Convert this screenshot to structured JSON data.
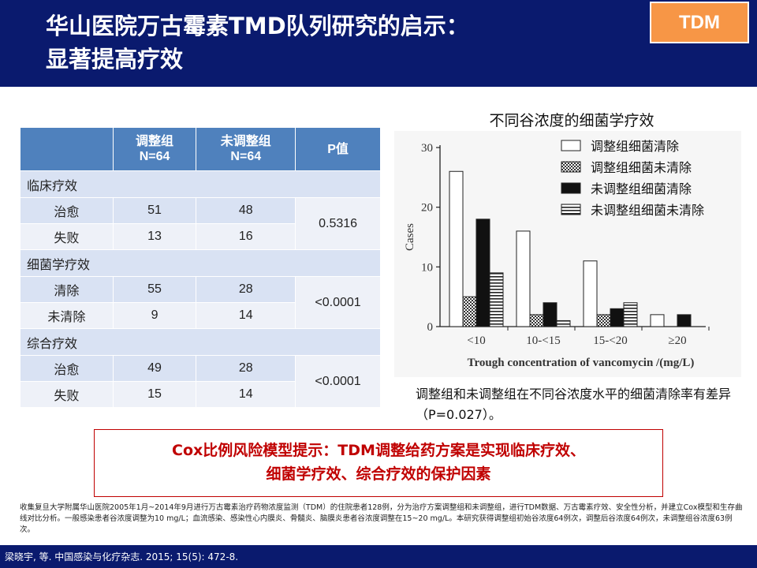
{
  "header": {
    "title_line1": "华山医院万古霉素TMD队列研究的启示：",
    "title_line2": "显著提高疗效",
    "badge": "TDM"
  },
  "table": {
    "headers": [
      {
        "line1": "调整组",
        "line2": "N=64"
      },
      {
        "line1": "未调整组",
        "line2": "N=64"
      },
      {
        "line1": "P值",
        "line2": ""
      }
    ],
    "groups": [
      {
        "name": "临床疗效",
        "rows": [
          {
            "label": "治愈",
            "adjusted": "51",
            "unadjusted": "48"
          },
          {
            "label": "失败",
            "adjusted": "13",
            "unadjusted": "16"
          }
        ],
        "p": "0.5316"
      },
      {
        "name": "细菌学疗效",
        "rows": [
          {
            "label": "清除",
            "adjusted": "55",
            "unadjusted": "28"
          },
          {
            "label": "未清除",
            "adjusted": "9",
            "unadjusted": "14"
          }
        ],
        "p": "<0.0001"
      },
      {
        "name": "综合疗效",
        "rows": [
          {
            "label": "治愈",
            "adjusted": "49",
            "unadjusted": "28"
          },
          {
            "label": "失败",
            "adjusted": "15",
            "unadjusted": "14"
          }
        ],
        "p": "<0.0001"
      }
    ]
  },
  "chart_data": {
    "type": "bar",
    "title": "不同谷浓度的细菌学疗效",
    "xlabel": "Trough concentration of vancomycin /(mg/L)",
    "ylabel": "Cases",
    "ylim": [
      0,
      30
    ],
    "yticks": [
      0,
      10,
      20,
      30
    ],
    "categories": [
      "<10",
      "10-<15",
      "15-<20",
      "≥20"
    ],
    "legend_position": "top-right",
    "series": [
      {
        "name": "调整组细菌清除",
        "pattern": "white",
        "values": [
          26,
          16,
          11,
          2
        ]
      },
      {
        "name": "调整组细菌未清除",
        "pattern": "checker",
        "values": [
          5,
          2,
          2,
          0
        ]
      },
      {
        "name": "未调整组细菌清除",
        "pattern": "black",
        "values": [
          18,
          4,
          3,
          2
        ]
      },
      {
        "name": "未调整组细菌未清除",
        "pattern": "hstripes",
        "values": [
          9,
          1,
          4,
          0
        ]
      }
    ]
  },
  "chart_note": "调整组和未调整组在不同谷浓度水平的细菌清除率有差异（P=0.027）。",
  "cox": {
    "line1": "Cox比例风险模型提示：TDM调整给药方案是实现临床疗效、",
    "line2": "细菌学疗效、综合疗效的保护因素"
  },
  "footnote": "收集复旦大学附属华山医院2005年1月~2014年9月进行万古霉素治疗药物浓度监测（TDM）的住院患者128例，分为治疗方案调整组和未调整组，进行TDM数据、万古霉素疗效、安全性分析，并建立Cox模型和生存曲线对比分析。一般感染患者谷浓度调整为10 mg/L；血流感染、感染性心内膜炎、骨髓炎、脑膜炎患者谷浓度调整在15~20 mg/L。本研究获得调整组初始谷浓度64例次，调整后谷浓度64例次，未调整组谷浓度63例次。",
  "reference": "梁晓宇, 等. 中国感染与化疗杂志. 2015; 15(5): 472-8."
}
